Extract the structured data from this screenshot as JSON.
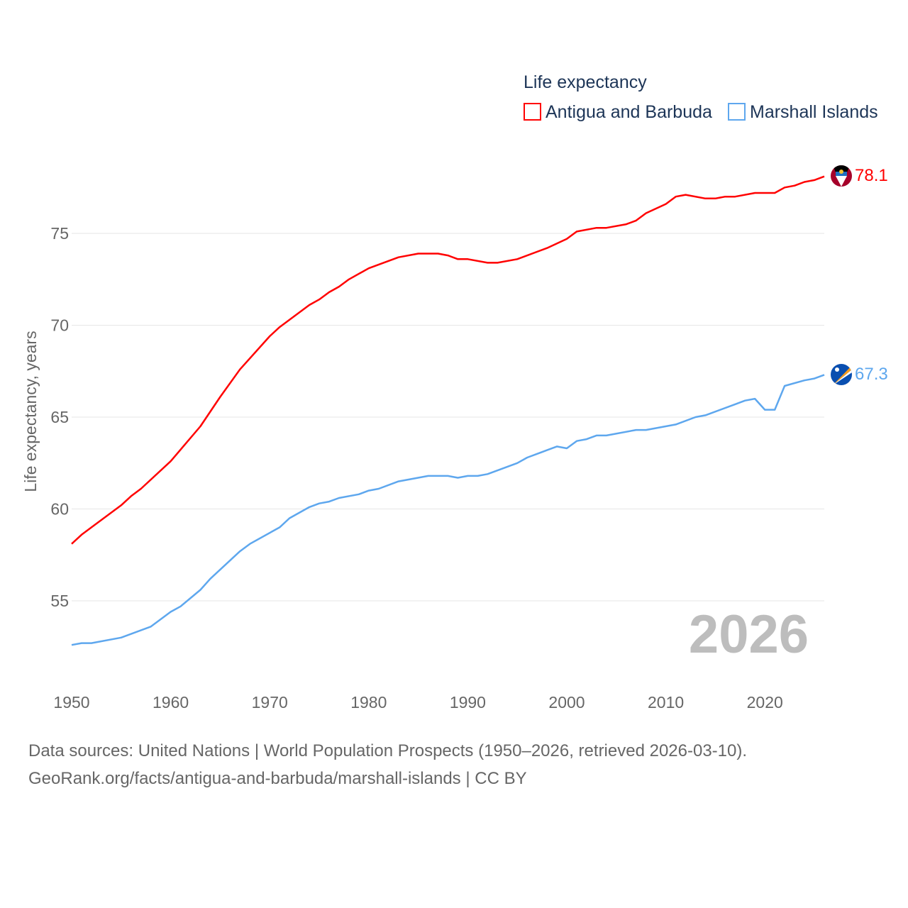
{
  "chart_data": {
    "type": "line",
    "title": "Life expectancy",
    "xlabel": "",
    "ylabel": "Life expectancy, years",
    "xlim": [
      1950,
      2026
    ],
    "ylim": [
      51.5,
      80
    ],
    "x_ticks": [
      1950,
      1960,
      1970,
      1980,
      1990,
      2000,
      2010,
      2020
    ],
    "y_ticks": [
      55,
      60,
      65,
      70,
      75
    ],
    "grid": true,
    "legend_position": "top-right",
    "year_watermark": "2026",
    "series": [
      {
        "name": "Antigua and Barbuda",
        "color": "#ff0000",
        "end_label": "78.1",
        "flag": "antigua-and-barbuda-flag",
        "points": [
          [
            1950,
            58.1
          ],
          [
            1951,
            58.6
          ],
          [
            1952,
            59.0
          ],
          [
            1955,
            60.2
          ],
          [
            1956,
            60.7
          ],
          [
            1957,
            61.1
          ],
          [
            1960,
            62.6
          ],
          [
            1963,
            64.5
          ],
          [
            1965,
            66.1
          ],
          [
            1967,
            67.6
          ],
          [
            1970,
            69.4
          ],
          [
            1971,
            69.9
          ],
          [
            1974,
            71.1
          ],
          [
            1975,
            71.4
          ],
          [
            1976,
            71.8
          ],
          [
            1977,
            72.1
          ],
          [
            1978,
            72.5
          ],
          [
            1980,
            73.1
          ],
          [
            1983,
            73.7
          ],
          [
            1985,
            73.9
          ],
          [
            1987,
            73.9
          ],
          [
            1988,
            73.8
          ],
          [
            1989,
            73.6
          ],
          [
            1990,
            73.6
          ],
          [
            1992,
            73.4
          ],
          [
            1993,
            73.4
          ],
          [
            1995,
            73.6
          ],
          [
            1998,
            74.2
          ],
          [
            2000,
            74.7
          ],
          [
            2001,
            75.1
          ],
          [
            2003,
            75.3
          ],
          [
            2004,
            75.3
          ],
          [
            2006,
            75.5
          ],
          [
            2007,
            75.7
          ],
          [
            2008,
            76.1
          ],
          [
            2010,
            76.6
          ],
          [
            2011,
            77.0
          ],
          [
            2012,
            77.1
          ],
          [
            2014,
            76.9
          ],
          [
            2015,
            76.9
          ],
          [
            2016,
            77.0
          ],
          [
            2017,
            77.0
          ],
          [
            2019,
            77.2
          ],
          [
            2021,
            77.2
          ],
          [
            2022,
            77.5
          ],
          [
            2023,
            77.6
          ],
          [
            2024,
            77.8
          ],
          [
            2025,
            77.9
          ],
          [
            2026,
            78.1
          ]
        ]
      },
      {
        "name": "Marshall Islands",
        "color": "#5ea7ee",
        "end_label": "67.3",
        "flag": "marshall-islands-flag",
        "points": [
          [
            1950,
            52.6
          ],
          [
            1951,
            52.7
          ],
          [
            1952,
            52.7
          ],
          [
            1955,
            53.0
          ],
          [
            1958,
            53.6
          ],
          [
            1960,
            54.4
          ],
          [
            1961,
            54.7
          ],
          [
            1963,
            55.6
          ],
          [
            1964,
            56.2
          ],
          [
            1967,
            57.7
          ],
          [
            1968,
            58.1
          ],
          [
            1971,
            59.0
          ],
          [
            1972,
            59.5
          ],
          [
            1974,
            60.1
          ],
          [
            1975,
            60.3
          ],
          [
            1976,
            60.4
          ],
          [
            1977,
            60.6
          ],
          [
            1979,
            60.8
          ],
          [
            1980,
            61.0
          ],
          [
            1981,
            61.1
          ],
          [
            1983,
            61.5
          ],
          [
            1986,
            61.8
          ],
          [
            1988,
            61.8
          ],
          [
            1989,
            61.7
          ],
          [
            1990,
            61.8
          ],
          [
            1991,
            61.8
          ],
          [
            1992,
            61.9
          ],
          [
            1995,
            62.5
          ],
          [
            1996,
            62.8
          ],
          [
            1998,
            63.2
          ],
          [
            1999,
            63.4
          ],
          [
            2000,
            63.3
          ],
          [
            2001,
            63.7
          ],
          [
            2002,
            63.8
          ],
          [
            2003,
            64.0
          ],
          [
            2004,
            64.0
          ],
          [
            2007,
            64.3
          ],
          [
            2008,
            64.3
          ],
          [
            2011,
            64.6
          ],
          [
            2013,
            65.0
          ],
          [
            2014,
            65.1
          ],
          [
            2017,
            65.7
          ],
          [
            2018,
            65.9
          ],
          [
            2019,
            66.0
          ],
          [
            2020,
            65.4
          ],
          [
            2021,
            65.4
          ],
          [
            2022,
            66.7
          ],
          [
            2024,
            67.0
          ],
          [
            2025,
            67.1
          ],
          [
            2026,
            67.3
          ]
        ]
      }
    ]
  },
  "footer": {
    "sources": "Data sources: United Nations | World Population Prospects (1950–2026, retrieved 2026-03-10).",
    "link": "GeoRank.org/facts/antigua-and-barbuda/marshall-islands | CC BY"
  }
}
